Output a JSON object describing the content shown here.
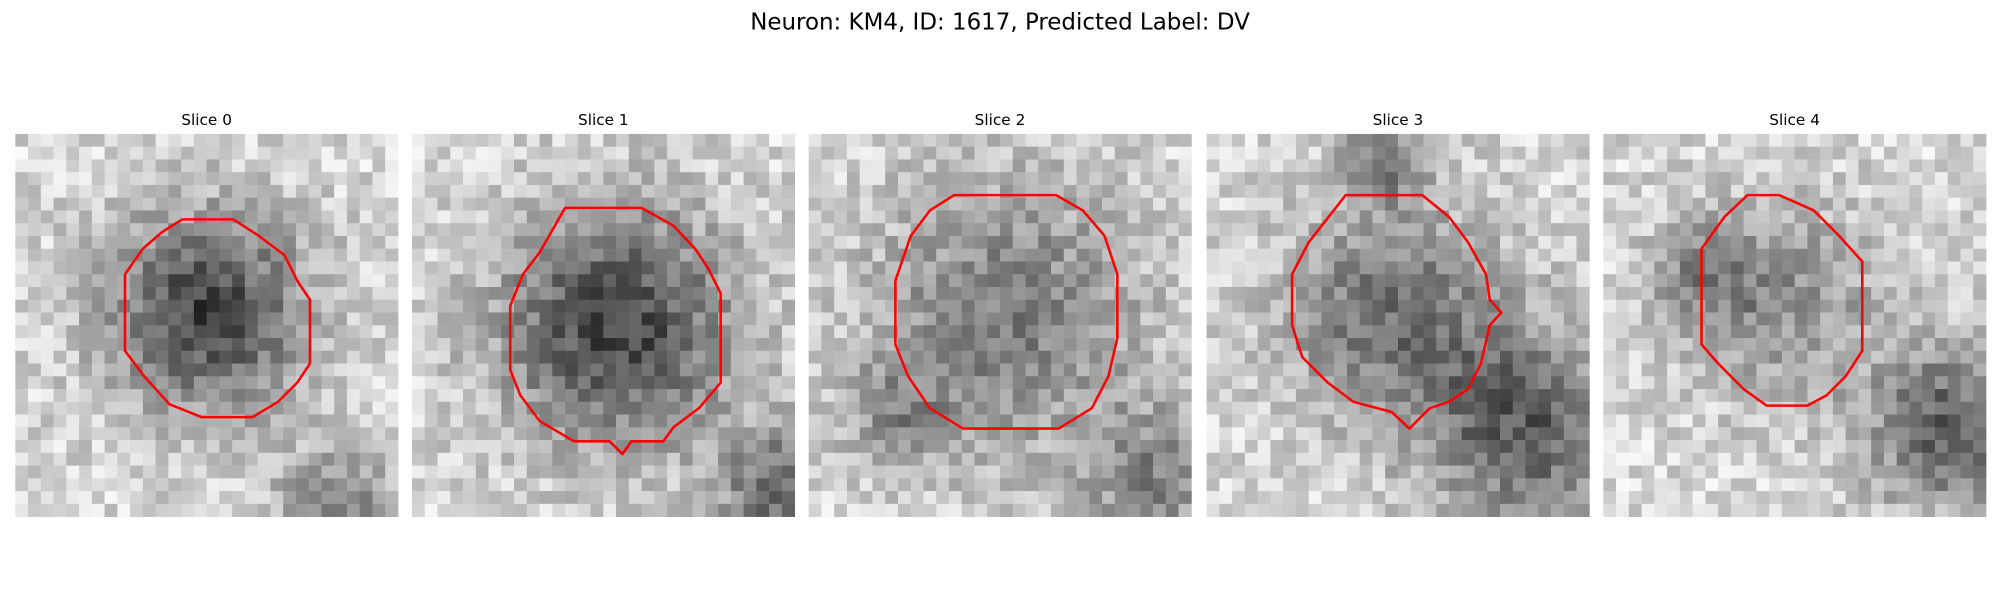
{
  "title": "Neuron: KM4, ID: 1617, Predicted Label: DV",
  "panels": [
    {
      "title": "Slice 0"
    },
    {
      "title": "Slice 1"
    },
    {
      "title": "Slice 2"
    },
    {
      "title": "Slice 3"
    },
    {
      "title": "Slice 4"
    }
  ]
}
